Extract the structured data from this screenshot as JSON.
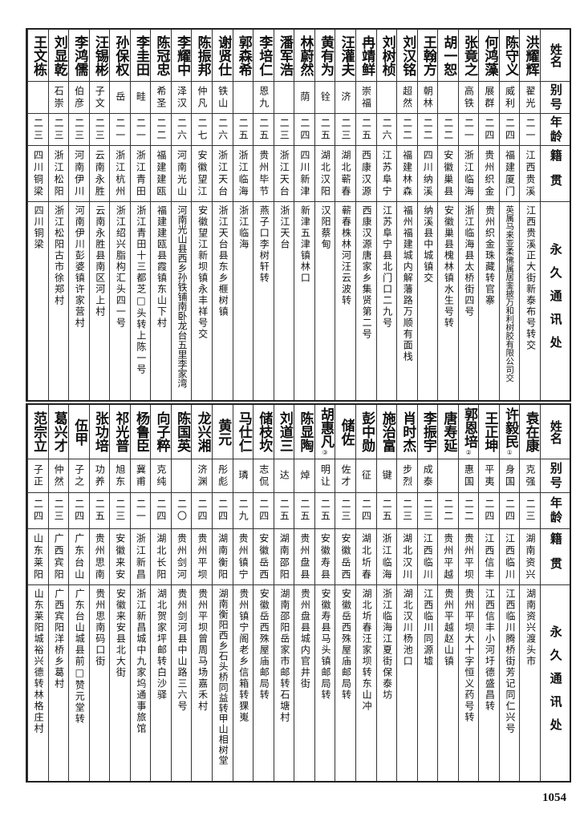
{
  "headers": {
    "name": "姓名",
    "alias": "别号",
    "age": "年龄",
    "origin": "籍贯",
    "address": "永久通讯处"
  },
  "top_rows": [
    {
      "name": "洪耀辉",
      "alias": "翟光",
      "age": "二一",
      "origin": "江西贵溪",
      "address": "江西贵溪正大街新泰布号转交"
    },
    {
      "name": "陈守义",
      "alias": "威利",
      "age": "二四",
      "origin": "福建厦门",
      "address": "英属马来亚柔佛属居銮披万和利树胶有限公司交"
    },
    {
      "name": "何鸿藻",
      "alias": "展群",
      "age": "二四",
      "origin": "贵州织金",
      "address": "贵州织金珠藏转官寨"
    },
    {
      "name": "张竟之",
      "alias": "高铁",
      "age": "二一",
      "origin": "浙江临海",
      "address": "浙江临海县太桥街四号"
    },
    {
      "name": "胡一恕",
      "alias": "",
      "age": "二二",
      "origin": "安徽巢县",
      "address": "安徽巢县槐林镇水生号转"
    },
    {
      "name": "王翰方",
      "alias": "朝林",
      "age": "二二",
      "origin": "四川纳溪",
      "address": "纳溪县中城镇交"
    },
    {
      "name": "刘汉铭",
      "alias": "超然",
      "age": "二二",
      "origin": "福建林森",
      "address": "福州福建城内解藩路万顺有面栈"
    },
    {
      "name": "刘树桢",
      "alias": "",
      "age": "二六",
      "origin": "江苏阜宁",
      "address": "江苏阜宁县北门口二九号"
    },
    {
      "name": "冉靖鲜",
      "alias": "崇福",
      "age": "二五",
      "origin": "西康汉源",
      "address": "西康汉源唐家乡集贤第二号"
    },
    {
      "name": "汪灌夫",
      "alias": "济",
      "age": "二三",
      "origin": "湖北蕲春",
      "address": "蕲春株林河汪云波转"
    },
    {
      "name": "黄有为",
      "alias": "铨",
      "age": "二五",
      "origin": "湖北汉阳",
      "address": "汉阳蔡甸"
    },
    {
      "name": "林蔚然",
      "alias": "荫",
      "age": "二四",
      "origin": "四川新津",
      "address": "新津五津镇林口"
    },
    {
      "name": "潘军浩",
      "alias": "",
      "age": "二三",
      "origin": "浙江天台",
      "address": "浙江天台"
    },
    {
      "name": "李培仁",
      "alias": "恩九",
      "age": "二五",
      "origin": "贵州毕节",
      "address": "燕子口李树轩转"
    },
    {
      "name": "郭森希",
      "alias": "",
      "age": "二五",
      "origin": "浙江临海",
      "address": "浙江临海"
    },
    {
      "name": "谢贤仕",
      "alias": "铁山",
      "age": "二六",
      "origin": "浙江天台",
      "address": "浙江天台县东乡榧树镇"
    },
    {
      "name": "陈振邦",
      "alias": "仲凡",
      "age": "二七",
      "origin": "安徽望江",
      "address": "安徽望江新坝镇永丰祥号交"
    },
    {
      "name": "李耀中",
      "alias": "泽汉",
      "age": "二六",
      "origin": "河南光山",
      "address": "河南光山县西乡孙铁铺南卧龙台五里李家湾"
    },
    {
      "name": "陈冠忠",
      "alias": "希圣",
      "age": "二二",
      "origin": "福建建瓯",
      "address": "福建建瓯县霞镇东山下村"
    },
    {
      "name": "李圭田",
      "alias": "畦",
      "age": "二一",
      "origin": "浙江青田",
      "address": "浙江青田十三都芝□头转上陈一号"
    },
    {
      "name": "孙保权",
      "alias": "岳",
      "age": "二一",
      "origin": "浙江杭州",
      "address": "浙江绍兴脂构汇头四一号"
    },
    {
      "name": "汪锡彬",
      "alias": "子文",
      "age": "二三",
      "origin": "云南永胜",
      "address": "云南永胜县南区河上村"
    },
    {
      "name": "李鸿儒",
      "alias": "伯彦",
      "age": "二三",
      "origin": "河南伊川",
      "address": "河南伊川彭婆镇许家营村"
    },
    {
      "name": "刘显乾",
      "alias": "石崇",
      "age": "二三",
      "origin": "浙江松阳",
      "address": "浙江松阳古市徐郑村"
    },
    {
      "name": "王文栋",
      "alias": "",
      "age": "二三",
      "origin": "四川铜梁",
      "address": "四川铜梁"
    }
  ],
  "bottom_rows": [
    {
      "name": "袁在康",
      "alias": "克强",
      "age": "二三",
      "origin": "湖南资兴",
      "address": "湖南资兴渡头市"
    },
    {
      "name": "许毅民",
      "note": "①",
      "alias": "身国",
      "age": "二四",
      "origin": "江西临川",
      "address": "江西临川腾桥街芳记同仁兴号"
    },
    {
      "name": "王正坤",
      "alias": "平夷",
      "age": "二四",
      "origin": "江西信丰",
      "address": "江西信丰小河圩德盛昌转"
    },
    {
      "name": "郭恩培",
      "note": "②",
      "alias": "惠国",
      "age": "二二",
      "origin": "贵州平坝",
      "address": "贵州平坝大十字恒义药号转"
    },
    {
      "name": "唐寿延",
      "alias": "",
      "age": "二二",
      "origin": "贵州平越",
      "address": "贵州平越赵山镇"
    },
    {
      "name": "李振宇",
      "alias": "成泰",
      "age": "二三",
      "origin": "江西临川",
      "address": "江西临川同源墟"
    },
    {
      "name": "肖时杰",
      "alias": "步烈",
      "age": "二三",
      "origin": "湖北汉川",
      "address": "湖北汉川杨池口"
    },
    {
      "name": "施治富",
      "alias": "键",
      "age": "二五",
      "origin": "浙江临海",
      "address": "浙江临海江夏街保泰坊"
    },
    {
      "name": "彭中勋",
      "alias": "征",
      "age": "二四",
      "origin": "湖北圻春",
      "address": "湖北圻春汪家坝转东山冲"
    },
    {
      "name": "储佐",
      "alias": "佐才",
      "age": "二三",
      "origin": "安徽岳西",
      "address": "安徽岳西殊屋庙邮局转"
    },
    {
      "name": "胡惠凡",
      "note": "③",
      "alias": "明让",
      "age": "二五",
      "origin": "安徽寿县",
      "address": "安徽寿县马头镇邮局转"
    },
    {
      "name": "陈显陶",
      "alias": "焯",
      "age": "二五",
      "origin": "贵州盘县",
      "address": "贵州盘县城内官井街"
    },
    {
      "name": "刘道三",
      "alias": "达",
      "age": "二五",
      "origin": "湖南邵阳",
      "address": "湖南邵阳岳家市邮转石塘村"
    },
    {
      "name": "储枝坎",
      "alias": "志侃",
      "age": "二四",
      "origin": "安徽岳西",
      "address": "安徽岳西殊屋庙邮局转"
    },
    {
      "name": "马仕仁",
      "alias": "璘",
      "age": "二九",
      "origin": "贵州镇宁",
      "address": "贵州镇宁阁老乡信箱转猓嵬"
    },
    {
      "name": "黄元",
      "alias": "彤彪",
      "age": "二四",
      "origin": "湖南衡阳",
      "address": "湖南衡阳西乡石头桥同益转甲山相树堂"
    },
    {
      "name": "龙兴湘",
      "alias": "济渊",
      "age": "二四",
      "origin": "贵州平坝",
      "address": "贵州平坝曾周马场嘉禾村"
    },
    {
      "name": "陈国英",
      "alias": "",
      "age": "二〇",
      "origin": "贵州剑河",
      "address": "贵州剑河县中山路三六号"
    },
    {
      "name": "向子粹",
      "alias": "克纯",
      "age": "二四",
      "origin": "湖北长阳",
      "address": "湖北贺家坪邮转白沙驿"
    },
    {
      "name": "杨鲁臣",
      "alias": "冀甫",
      "age": "二一",
      "origin": "浙江新昌",
      "address": "浙江新昌城中九家坞通事旅馆"
    },
    {
      "name": "祁光普",
      "alias": "旭东",
      "age": "二三",
      "origin": "安徽来安",
      "address": "安徽来安县北大街"
    },
    {
      "name": "张功培",
      "alias": "功养",
      "age": "二五",
      "origin": "贵州思南",
      "address": "贵州思南码口街"
    },
    {
      "name": "伍甲",
      "alias": "子之",
      "age": "二四",
      "origin": "广东台山",
      "address": "广东台山城县前□赞元堂转"
    },
    {
      "name": "葛兴才",
      "alias": "仲然",
      "age": "二三",
      "origin": "广西宾阳",
      "address": "广西宾阳洋桥乡葛村"
    },
    {
      "name": "范宗立",
      "alias": "子正",
      "age": "二四",
      "origin": "山东莱阳",
      "address": "山东莱阳城裕兴德转林格庄村"
    }
  ],
  "page_number": "1054"
}
